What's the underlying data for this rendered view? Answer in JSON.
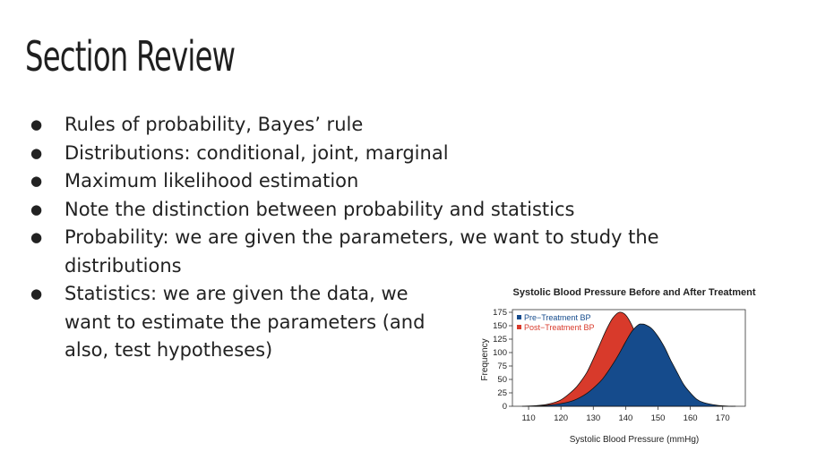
{
  "slide": {
    "title": "Section Review",
    "bullets": [
      "Rules of probability, Bayes’ rule",
      "Distributions: conditional, joint, marginal",
      "Maximum likelihood estimation",
      "Note the distinction between probability and statistics",
      "Probability: we are given the parameters, we want to study the distributions",
      "Statistics: we are given the data, we want to estimate the parameters (and also, test hypotheses)"
    ]
  },
  "chart_data": {
    "type": "area",
    "title": "Systolic Blood Pressure Before and After Treatment",
    "xlabel": "Systolic Blood Pressure (mmHg)",
    "ylabel": "Frequency",
    "xlim": [
      105,
      177
    ],
    "ylim": [
      0,
      180
    ],
    "x_ticks": [
      110,
      120,
      130,
      140,
      150,
      160,
      170
    ],
    "y_ticks": [
      0,
      25,
      50,
      75,
      100,
      125,
      150,
      175
    ],
    "legend_position": "top-left",
    "grid": false,
    "series": [
      {
        "name": "Post−Treatment BP",
        "color": "#d83a2b",
        "x": [
          108,
          112,
          116,
          120,
          124,
          126,
          128,
          130,
          132,
          134,
          136,
          138,
          140,
          142,
          144,
          146,
          148,
          150,
          152,
          154,
          156,
          160,
          164,
          168
        ],
        "values": [
          0,
          1,
          4,
          12,
          31,
          45,
          63,
          88,
          115,
          142,
          164,
          175,
          170,
          150,
          120,
          90,
          62,
          40,
          24,
          13,
          6,
          2,
          0,
          0
        ]
      },
      {
        "name": "Pre−Treatment BP",
        "color": "#154b8c",
        "x": [
          112,
          116,
          120,
          124,
          128,
          132,
          134,
          136,
          138,
          140,
          142,
          144,
          145,
          146,
          148,
          150,
          152,
          154,
          156,
          158,
          160,
          162,
          164,
          168,
          172,
          174
        ],
        "values": [
          0,
          2,
          5,
          11,
          24,
          45,
          60,
          78,
          98,
          120,
          140,
          152,
          153,
          152,
          145,
          130,
          110,
          85,
          62,
          40,
          25,
          13,
          7,
          2,
          0,
          0
        ]
      }
    ]
  }
}
